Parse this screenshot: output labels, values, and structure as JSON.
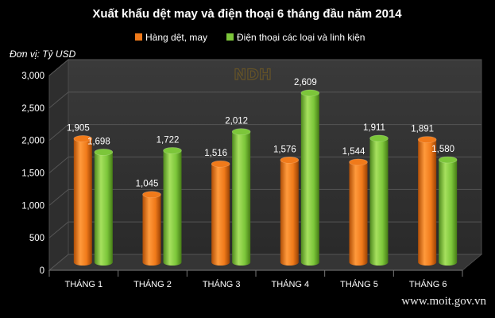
{
  "chart_data": {
    "type": "bar",
    "title": "Xuất khẩu dệt may và điện thoại 6 tháng đầu năm 2014",
    "unit_label": "Đơn vị: Tỷ USD",
    "categories": [
      "THÁNG 1",
      "THÁNG 2",
      "THÁNG 3",
      "THÁNG 4",
      "THÁNG 5",
      "THÁNG 6"
    ],
    "series": [
      {
        "name": "Hàng dệt, may",
        "values": [
          1905,
          1045,
          1516,
          1576,
          1544,
          1891
        ],
        "color": "#f07a1a"
      },
      {
        "name": "Điện thoại các loại và linh kiện",
        "values": [
          1698,
          1722,
          2012,
          2609,
          1911,
          1580
        ],
        "color": "#7cc63a"
      }
    ],
    "ylim": [
      0,
      3000
    ],
    "yticks": [
      0,
      500,
      1000,
      1500,
      2000,
      2500,
      3000
    ],
    "ytick_labels": [
      "0",
      "500",
      "1,000",
      "1,500",
      "2,000",
      "2,500",
      "3,000"
    ],
    "value_labels": [
      [
        "1,905",
        "1,045",
        "1,516",
        "1,576",
        "1,544",
        "1,891"
      ],
      [
        "1,698",
        "1,722",
        "2,012",
        "2,609",
        "1,911",
        "1,580"
      ]
    ],
    "grid": true,
    "legend_position": "top",
    "style": "3d-cylinder"
  },
  "watermark": {
    "logo_text": "NDH",
    "site_text": "www.moit.gov.vn"
  }
}
